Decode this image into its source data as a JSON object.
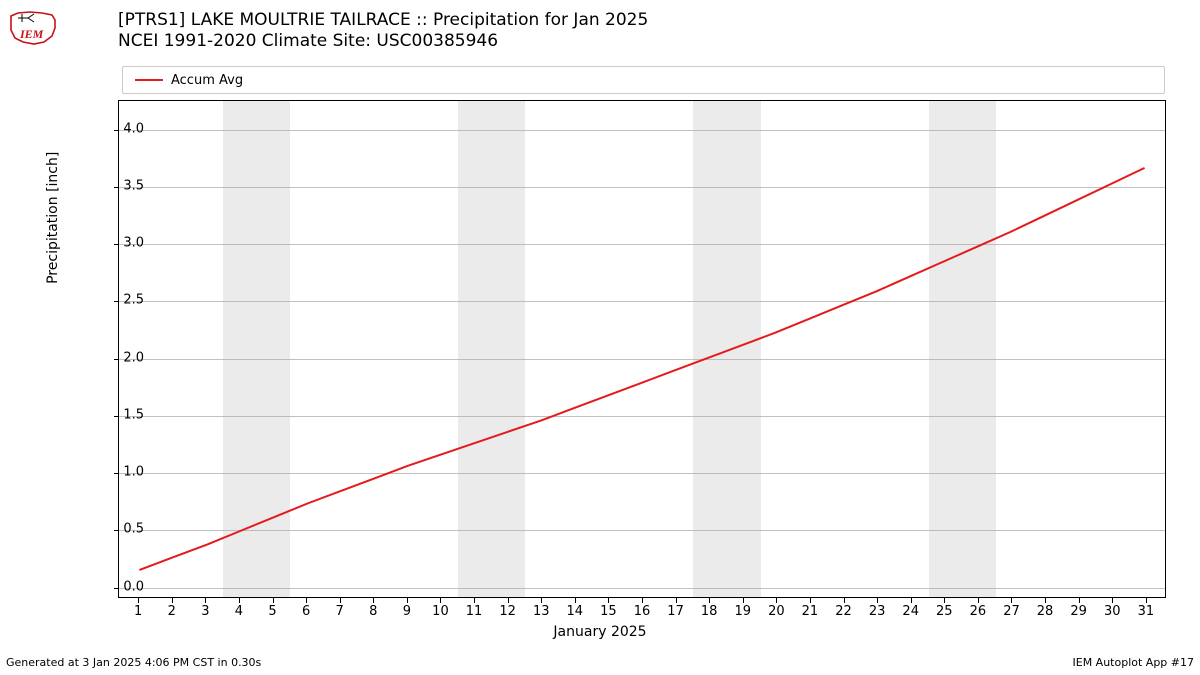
{
  "logo": {
    "name": "iem-logo",
    "outline_color": "#c91016",
    "text": "IEM",
    "text_color": "#c91016"
  },
  "title_line1": "[PTRS1] LAKE MOULTRIE TAILRACE :: Precipitation for Jan 2025",
  "title_line2": "NCEI 1991-2020 Climate Site: USC00385946",
  "legend": {
    "label": "Accum Avg",
    "color": "#e41a1c",
    "line_width": 2
  },
  "footer_left": "Generated at 3 Jan 2025 4:06 PM CST in 0.30s",
  "footer_right": "IEM Autoplot App #17",
  "chart": {
    "type": "line",
    "background_color": "#ffffff",
    "grid_color": "#b0b0b0",
    "weekend_band_color": "#ebebeb",
    "xlabel": "January 2025",
    "ylabel": "Precipitation [inch]",
    "label_fontsize": 14,
    "tick_fontsize": 13,
    "xlim": [
      0.4,
      31.6
    ],
    "ylim": [
      -0.1,
      4.25
    ],
    "xticks": [
      1,
      2,
      3,
      4,
      5,
      6,
      7,
      8,
      9,
      10,
      11,
      12,
      13,
      14,
      15,
      16,
      17,
      18,
      19,
      20,
      21,
      22,
      23,
      24,
      25,
      26,
      27,
      28,
      29,
      30,
      31
    ],
    "yticks": [
      0.0,
      0.5,
      1.0,
      1.5,
      2.0,
      2.5,
      3.0,
      3.5,
      4.0
    ],
    "weekend_bands": [
      {
        "start": 3.5,
        "end": 5.5
      },
      {
        "start": 10.5,
        "end": 12.5
      },
      {
        "start": 17.5,
        "end": 19.5
      },
      {
        "start": 24.5,
        "end": 26.5
      }
    ],
    "series": {
      "color": "#e41a1c",
      "line_width": 2,
      "x": [
        1,
        2,
        3,
        4,
        5,
        6,
        7,
        8,
        9,
        10,
        11,
        12,
        13,
        14,
        15,
        16,
        17,
        18,
        19,
        20,
        21,
        22,
        23,
        24,
        25,
        26,
        27,
        28,
        29,
        30,
        31
      ],
      "y": [
        0.14,
        0.25,
        0.36,
        0.48,
        0.6,
        0.72,
        0.83,
        0.94,
        1.05,
        1.15,
        1.25,
        1.35,
        1.45,
        1.56,
        1.67,
        1.78,
        1.89,
        2.0,
        2.11,
        2.22,
        2.34,
        2.46,
        2.58,
        2.71,
        2.84,
        2.97,
        3.1,
        3.24,
        3.38,
        3.52,
        3.66
      ]
    }
  }
}
